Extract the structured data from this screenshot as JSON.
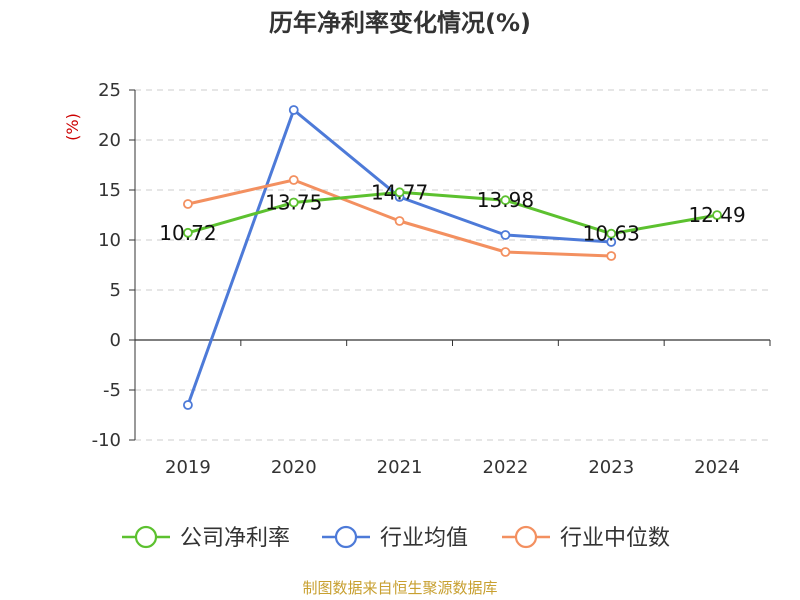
{
  "chart_data": {
    "type": "line",
    "title": "历年净利率变化情况(%)",
    "ylabel": "(%)",
    "xlabel": "",
    "ylim": [
      -10,
      25
    ],
    "y_ticks": [
      25,
      20,
      15,
      10,
      5,
      0,
      -5,
      -10
    ],
    "x": [
      "2019",
      "2020",
      "2021",
      "2022",
      "2023",
      "2024"
    ],
    "grid": true,
    "legend_position": "bottom",
    "series": [
      {
        "name": "公司净利率",
        "color": "#5cc12f",
        "values": [
          10.72,
          13.75,
          14.77,
          13.98,
          10.63,
          12.49
        ],
        "labels": [
          "10.72",
          "13.75",
          "14.77",
          "13.98",
          "10.63",
          "12.49"
        ]
      },
      {
        "name": "行业均值",
        "color": "#4d7ad8",
        "values": [
          -6.5,
          23.0,
          14.3,
          10.5,
          9.8,
          null
        ]
      },
      {
        "name": "行业中位数",
        "color": "#f39060",
        "values": [
          13.6,
          16.0,
          11.9,
          8.8,
          8.4,
          null
        ]
      }
    ]
  },
  "footer": {
    "source": "制图数据来自恒生聚源数据库"
  }
}
